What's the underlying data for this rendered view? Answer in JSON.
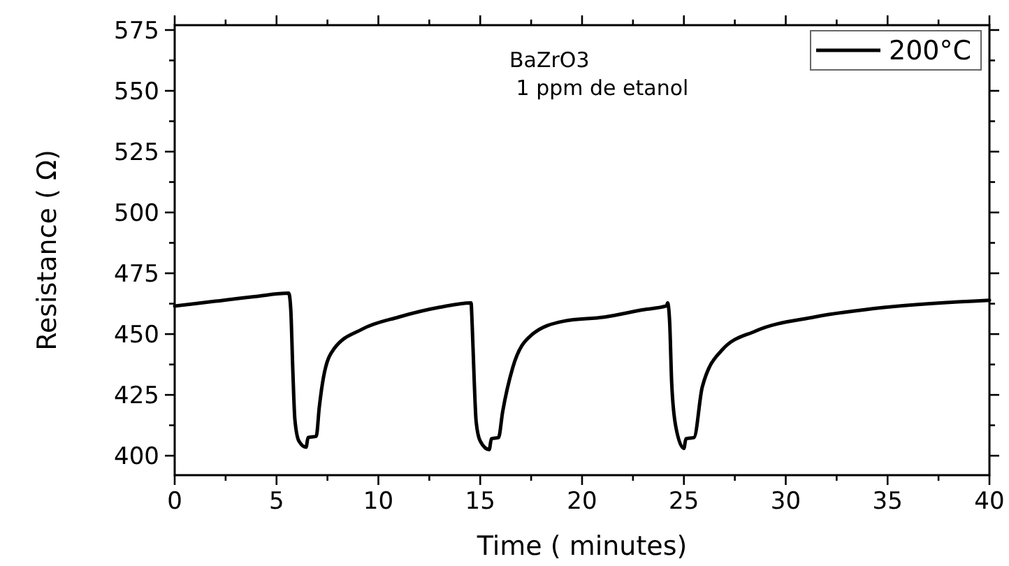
{
  "chart_data": {
    "type": "line",
    "xlabel": "Time (  minutes)",
    "ylabel": "Resistance ( Ω)",
    "annotations": [
      "BaZrO3",
      " 1 ppm de etanol"
    ],
    "xlim": [
      0,
      40
    ],
    "ylim": [
      392,
      577
    ],
    "xticks": [
      0,
      {
        "value": 2.5,
        "label": null
      },
      5,
      {
        "value": 7.5,
        "label": null
      },
      10,
      {
        "value": 12.5,
        "label": null
      },
      15,
      {
        "value": 17.5,
        "label": null
      },
      20,
      {
        "value": 22.5,
        "label": null
      },
      25,
      {
        "value": 27.5,
        "label": null
      },
      30,
      {
        "value": 32.5,
        "label": null
      },
      35,
      {
        "value": 37.5,
        "label": null
      },
      40
    ],
    "yticks": [
      400,
      {
        "value": 412.5,
        "label": null
      },
      425,
      {
        "value": 437.5,
        "label": null
      },
      450,
      {
        "value": 462.5,
        "label": null
      },
      475,
      {
        "value": 487.5,
        "label": null
      },
      500,
      {
        "value": 512.5,
        "label": null
      },
      525,
      {
        "value": 537.5,
        "label": null
      },
      550,
      {
        "value": 562.5,
        "label": null
      },
      575
    ],
    "grid": false,
    "legend": "top right",
    "line_style": "solid",
    "series": [
      {
        "name": "200°C",
        "color": "#000000",
        "x": [
          0,
          2,
          4,
          5.6,
          5.7,
          5.8,
          5.9,
          6.1,
          6.45,
          6.55,
          6.95,
          7.1,
          7.3,
          7.8,
          9.2,
          11,
          13,
          14.55,
          14.6,
          14.7,
          14.8,
          15.0,
          15.44,
          15.55,
          15.9,
          16.1,
          16.6,
          17.5,
          19.1,
          21.1,
          23,
          24.15,
          24.2,
          24.3,
          24.4,
          24.6,
          25.0,
          25.1,
          25.5,
          25.9,
          26.9,
          28.5,
          31.4,
          34.9,
          40
        ],
        "values": [
          461.5,
          463.5,
          465.5,
          466.8,
          460,
          435,
          415,
          406,
          403.5,
          407.5,
          408,
          420,
          432,
          443.7,
          452,
          457,
          461,
          462.8,
          455,
          432,
          414,
          406,
          402.5,
          407,
          407.5,
          418,
          436.3,
          449.5,
          455.3,
          457,
          460,
          461.6,
          462.8,
          455,
          430,
          412,
          403,
          407,
          407.5,
          428.2,
          443.7,
          451.2,
          457,
          461,
          463.9
        ]
      }
    ]
  }
}
